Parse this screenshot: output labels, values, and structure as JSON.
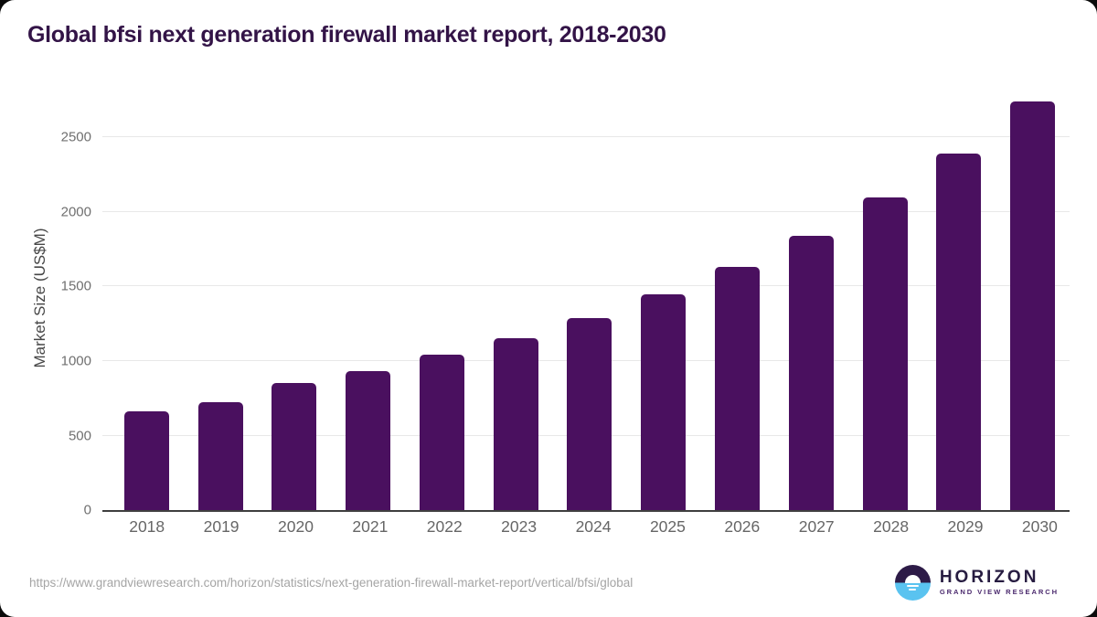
{
  "header": {
    "title": "Global bfsi next generation firewall market report, 2018-2030"
  },
  "chart_data": {
    "type": "bar",
    "title": "Global bfsi next generation firewall market report, 2018-2030",
    "categories": [
      "2018",
      "2019",
      "2020",
      "2021",
      "2022",
      "2023",
      "2024",
      "2025",
      "2026",
      "2027",
      "2028",
      "2029",
      "2030"
    ],
    "values": [
      665,
      725,
      850,
      935,
      1040,
      1155,
      1290,
      1445,
      1630,
      1840,
      2095,
      2390,
      2740
    ],
    "xlabel": "",
    "ylabel": "Market Size (US$M)",
    "yticks": [
      0,
      500,
      1000,
      1500,
      2000,
      2500
    ],
    "ylim": [
      0,
      2840
    ],
    "grid": true,
    "legend_position": "none",
    "bar_color": "#4a105f"
  },
  "colors": {
    "title": "#331447",
    "bar": "#4a105f",
    "gridline": "#e8e8e8",
    "axis_line": "#3f3f3f",
    "tick_label": "#6f6f6f",
    "source_text": "#a5a5a5",
    "logo_dark": "#2d1b47",
    "logo_blue": "#5ac3f0"
  },
  "footer": {
    "source_url": "https://www.grandviewresearch.com/horizon/statistics/next-generation-firewall-market-report/vertical/bfsi/global",
    "logo": {
      "name": "HORIZON",
      "subtitle": "GRAND VIEW RESEARCH"
    }
  }
}
